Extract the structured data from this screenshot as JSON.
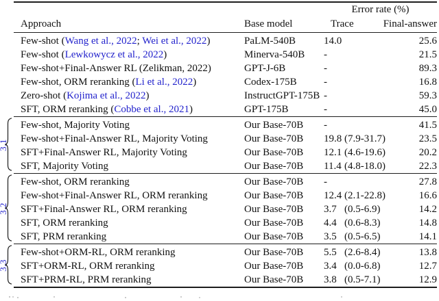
{
  "colors": {
    "link_blue": "#2222cc",
    "section_label_blue": "#2424d8",
    "text_black": "#111111"
  },
  "table": {
    "group_header": "Error rate (%)",
    "columns": {
      "approach": "Approach",
      "base_model": "Base model",
      "trace": "Trace",
      "final_answer": "Final-answer"
    },
    "sections": [
      {
        "label": "",
        "rows": [
          {
            "approach": [
              {
                "t": "Few-shot ("
              },
              {
                "t": "Wang et al., 2022",
                "link": true
              },
              {
                "t": "; "
              },
              {
                "t": "Wei et al., 2022",
                "link": true
              },
              {
                "t": ")"
              }
            ],
            "base": "PaLM-540B",
            "trace": "14.0",
            "ci": "",
            "final": "25.6"
          },
          {
            "approach": [
              {
                "t": "Few-shot ("
              },
              {
                "t": "Lewkowycz et al., 2022",
                "link": true
              },
              {
                "t": ")"
              }
            ],
            "base": "Minerva-540B",
            "trace": "-",
            "ci": "",
            "final": "21.5"
          },
          {
            "approach": [
              {
                "t": "Few-shot+Final-Answer RL (Zelikman, 2022)"
              }
            ],
            "base": "GPT-J-6B",
            "trace": "-",
            "ci": "",
            "final": "89.3"
          },
          {
            "approach": [
              {
                "t": "Few-shot, ORM reranking ("
              },
              {
                "t": "Li et al., 2022",
                "link": true
              },
              {
                "t": ")"
              }
            ],
            "base": "Codex-175B",
            "trace": "-",
            "ci": "",
            "final": "16.8"
          },
          {
            "approach": [
              {
                "t": "Zero-shot ("
              },
              {
                "t": "Kojima et al., 2022",
                "link": true
              },
              {
                "t": ")"
              }
            ],
            "base": "InstructGPT-175B",
            "trace": "-",
            "ci": "",
            "final": "59.3"
          },
          {
            "approach": [
              {
                "t": "SFT, ORM reranking ("
              },
              {
                "t": "Cobbe et al., 2021",
                "link": true
              },
              {
                "t": ")"
              }
            ],
            "base": "GPT-175B",
            "trace": "-",
            "ci": "",
            "final": "45.0"
          }
        ]
      },
      {
        "label": "3.1",
        "rows": [
          {
            "approach": [
              {
                "t": "Few-shot, Majority Voting"
              }
            ],
            "base": "Our Base-70B",
            "trace": "-",
            "ci": "",
            "final": "41.5"
          },
          {
            "approach": [
              {
                "t": "Few-shot+Final-Answer RL, Majority Voting"
              }
            ],
            "base": "Our Base-70B",
            "trace": "19.8",
            "ci": "(7.9-31.7)",
            "final": "23.5"
          },
          {
            "approach": [
              {
                "t": "SFT+Final-Answer RL, Majority Voting"
              }
            ],
            "base": "Our Base-70B",
            "trace": "12.1",
            "ci": "(4.6-19.6)",
            "final": "20.2"
          },
          {
            "approach": [
              {
                "t": "SFT, Majority Voting"
              }
            ],
            "base": "Our Base-70B",
            "trace": "11.4",
            "ci": "(4.8-18.0)",
            "final": "22.3"
          }
        ]
      },
      {
        "label": "3.2",
        "rows": [
          {
            "approach": [
              {
                "t": "Few-shot, ORM reranking"
              }
            ],
            "base": "Our Base-70B",
            "trace": "-",
            "ci": "",
            "final": "27.8"
          },
          {
            "approach": [
              {
                "t": "Few-shot+Final-Answer RL, ORM reranking"
              }
            ],
            "base": "Our Base-70B",
            "trace": "12.4",
            "ci": "(2.1-22.8)",
            "final": "16.6"
          },
          {
            "approach": [
              {
                "t": "SFT+Final-Answer RL, ORM reranking"
              }
            ],
            "base": "Our Base-70B",
            "trace": "3.7",
            "ci": "(0.5-6.9)",
            "final": "14.2"
          },
          {
            "approach": [
              {
                "t": "SFT, ORM reranking"
              }
            ],
            "base": "Our Base-70B",
            "trace": "4.4",
            "ci": "(0.6-8.3)",
            "final": "14.8"
          },
          {
            "approach": [
              {
                "t": "SFT, PRM reranking"
              }
            ],
            "base": "Our Base-70B",
            "trace": "3.5",
            "ci": "(0.5-6.5)",
            "final": "14.1"
          }
        ]
      },
      {
        "label": "3.3",
        "rows": [
          {
            "approach": [
              {
                "t": "Few-shot+ORM-RL, ORM reranking"
              }
            ],
            "base": "Our Base-70B",
            "trace": "5.5",
            "ci": "(2.6-8.4)",
            "final": "13.8"
          },
          {
            "approach": [
              {
                "t": "SFT+ORM-RL, ORM reranking"
              }
            ],
            "base": "Our Base-70B",
            "trace": "3.4",
            "ci": "(0.0-6.8)",
            "final": "12.7"
          },
          {
            "approach": [
              {
                "t": "SFT+PRM-RL, PRM reranking"
              }
            ],
            "base": "Our Base-70B",
            "trace": "3.8",
            "ci": "(0.5-7.1)",
            "final": "12.9"
          }
        ]
      }
    ]
  }
}
